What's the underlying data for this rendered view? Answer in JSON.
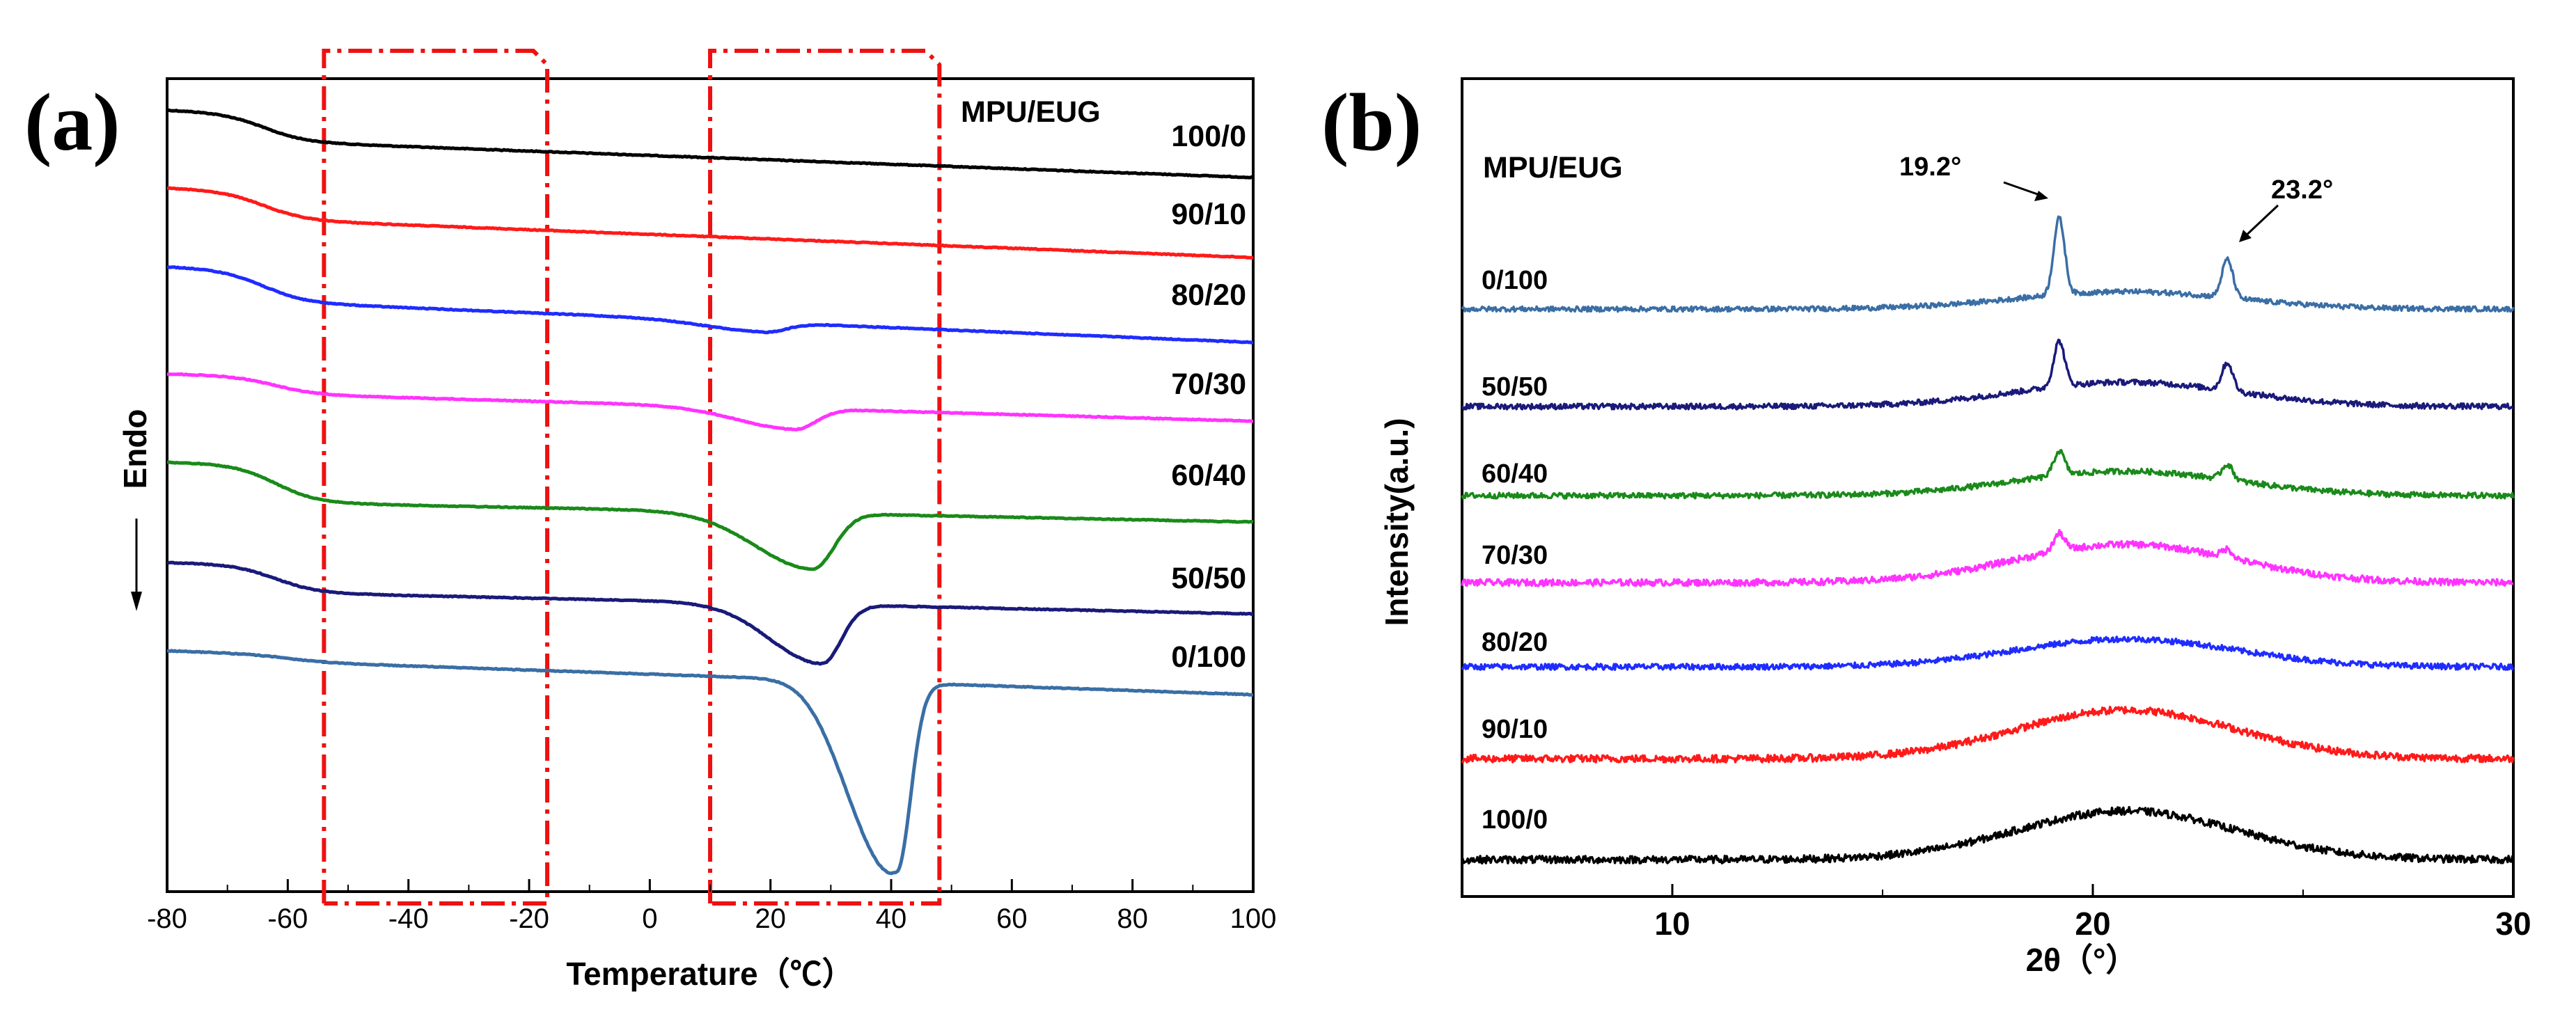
{
  "chart_data": [
    {
      "panel": "(a)",
      "type": "line",
      "xlabel": "Temperature（℃）",
      "ylabel": "Endo",
      "legend_title": "MPU/EUG",
      "xlim": [
        -80,
        100
      ],
      "xticks": [
        "-80",
        "-60",
        "-40",
        "-20",
        "0",
        "20",
        "40",
        "60",
        "80",
        "100"
      ],
      "highlight_boxes": [
        {
          "from": -54,
          "to": -17
        },
        {
          "from": 10,
          "to": 48
        }
      ],
      "series": [
        {
          "name": "100/0",
          "color": "#000000",
          "offset": 0,
          "glass_step": 40,
          "glass_at": -64,
          "peak_at": null,
          "peak_depth": 0,
          "peak_width": 0
        },
        {
          "name": "90/10",
          "color": "#ff1a1a",
          "offset": 1,
          "glass_step": 40,
          "glass_at": -64,
          "peak_at": null,
          "peak_depth": 0,
          "peak_width": 0
        },
        {
          "name": "80/20",
          "color": "#1f2cff",
          "offset": 2,
          "glass_step": 45,
          "glass_at": -64,
          "peak_at": 19,
          "peak_depth": 14,
          "peak_width": 5
        },
        {
          "name": "70/30",
          "color": "#ff33ff",
          "offset": 3,
          "glass_step": 25,
          "glass_at": -62,
          "peak_at": 24,
          "peak_depth": 30,
          "peak_width": 5
        },
        {
          "name": "60/40",
          "color": "#1a8a1a",
          "offset": 4,
          "glass_step": 55,
          "glass_at": -62,
          "peak_at": 27,
          "peak_depth": 80,
          "peak_width": 5
        },
        {
          "name": "50/50",
          "color": "#1a1a7a",
          "offset": 5,
          "glass_step": 40,
          "glass_at": -62,
          "peak_at": 28.5,
          "peak_depth": 85,
          "peak_width": 4.5
        },
        {
          "name": "0/100",
          "color": "#3a6ea5",
          "offset": 6,
          "glass_step": 10,
          "glass_at": -60,
          "peak_at": 41,
          "peak_depth": 255,
          "peak_width": 3.2
        }
      ]
    },
    {
      "panel": "(b)",
      "type": "line",
      "xlabel": "2θ（°）",
      "ylabel": "Intensity(a.u.)",
      "legend_title": "MPU/EUG",
      "xlim": [
        5,
        30
      ],
      "xticks": [
        "10",
        "20",
        "30"
      ],
      "annotations": [
        {
          "text": "19.2°",
          "x": 19.2
        },
        {
          "text": "23.2°",
          "x": 23.2
        }
      ],
      "series": [
        {
          "name": "0/100",
          "color": "#3a6ea5",
          "amorphous": 25,
          "peak1": 110,
          "peak2": 55
        },
        {
          "name": "50/50",
          "color": "#1a1a7a",
          "amorphous": 35,
          "peak1": 65,
          "peak2": 40
        },
        {
          "name": "60/40",
          "color": "#1a8a1a",
          "amorphous": 35,
          "peak1": 35,
          "peak2": 22
        },
        {
          "name": "70/30",
          "color": "#ff33ff",
          "amorphous": 55,
          "peak1": 25,
          "peak2": 12
        },
        {
          "name": "80/20",
          "color": "#1f2cff",
          "amorphous": 40,
          "peak1": 0,
          "peak2": 0
        },
        {
          "name": "90/10",
          "color": "#ff1a1a",
          "amorphous": 70,
          "peak1": 0,
          "peak2": 0
        },
        {
          "name": "100/0",
          "color": "#000000",
          "amorphous": 70,
          "peak1": 0,
          "peak2": 0
        }
      ]
    }
  ]
}
